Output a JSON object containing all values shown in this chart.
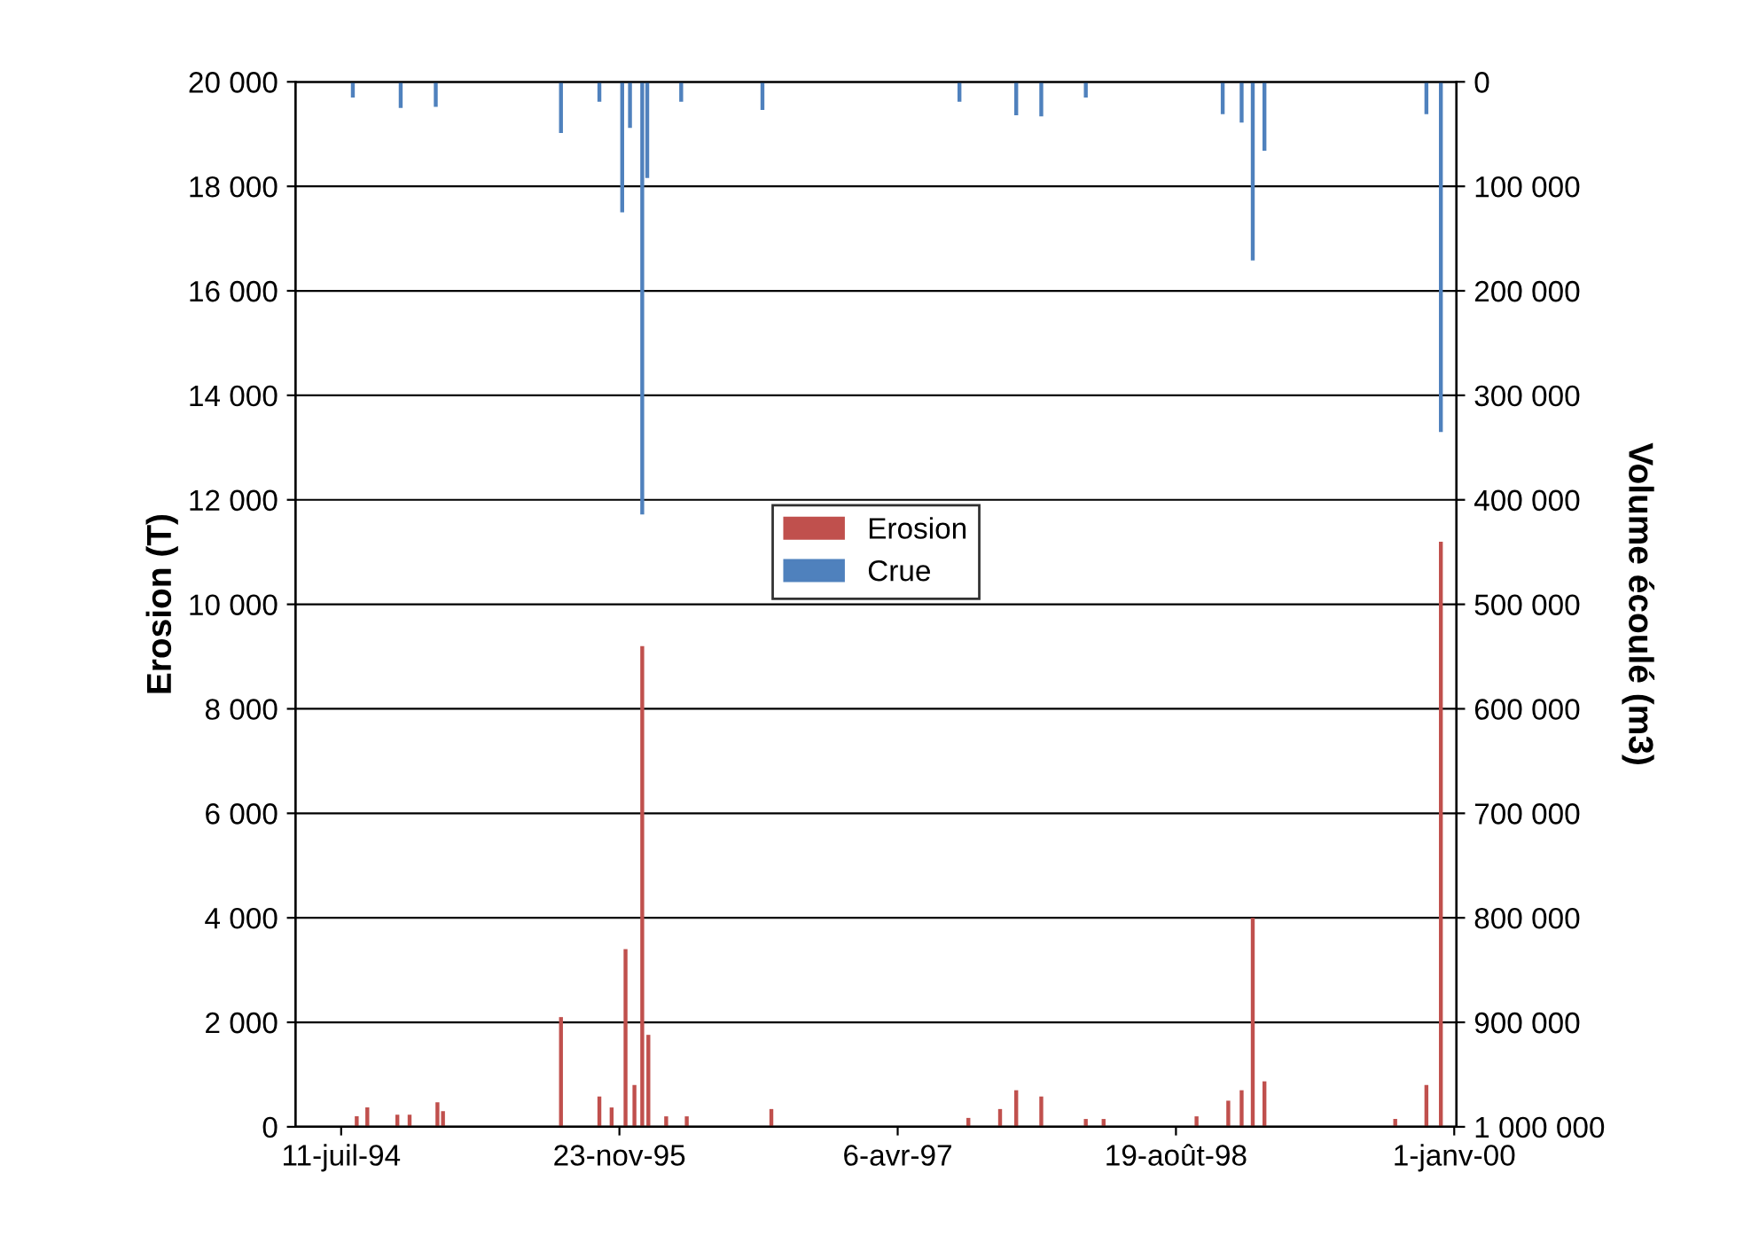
{
  "chart_data": {
    "type": "bar",
    "ylabel": "Erosion (T)",
    "y2label": "Volume écoulé (m3)",
    "xlim": [
      "1994-04-20",
      "2000-01-05"
    ],
    "xticks": [
      {
        "value": "1994-07-11",
        "label": "11-juil-94"
      },
      {
        "value": "1995-11-23",
        "label": "23-nov-95"
      },
      {
        "value": "1997-04-06",
        "label": "6-avr-97"
      },
      {
        "value": "1998-08-19",
        "label": "19-août-98"
      },
      {
        "value": "2000-01-01",
        "label": "1-janv-00"
      }
    ],
    "ylim": [
      0,
      20000
    ],
    "yticks": [
      0,
      {
        "value": 2000,
        "label": "2 000"
      },
      {
        "value": 4000,
        "label": "4 000"
      },
      {
        "value": 6000,
        "label": "6 000"
      },
      {
        "value": 8000,
        "label": "8 000"
      },
      {
        "value": 10000,
        "label": "10 000"
      },
      {
        "value": 12000,
        "label": "12 000"
      },
      {
        "value": 14000,
        "label": "14 000"
      },
      {
        "value": 16000,
        "label": "16 000"
      },
      {
        "value": 18000,
        "label": "18 000"
      },
      {
        "value": 20000,
        "label": "20 000"
      }
    ],
    "y2lim": [
      1000000,
      0
    ],
    "y2ticks": [
      0,
      {
        "value": 100000,
        "label": "100 000"
      },
      {
        "value": 200000,
        "label": "200 000"
      },
      {
        "value": 300000,
        "label": "300 000"
      },
      {
        "value": 400000,
        "label": "400 000"
      },
      {
        "value": 500000,
        "label": "500 000"
      },
      {
        "value": 600000,
        "label": "600 000"
      },
      {
        "value": 700000,
        "label": "700 000"
      },
      {
        "value": 800000,
        "label": "800 000"
      },
      {
        "value": 900000,
        "label": "900 000"
      },
      {
        "value": 1000000,
        "label": "1 000 000"
      }
    ],
    "grid": "y",
    "legend": "center",
    "series": [
      {
        "name": "Erosion",
        "color": "#c0504d",
        "x": [
          "1994-08-08",
          "1994-08-27",
          "1994-10-20",
          "1994-11-11",
          "1994-12-31",
          "1995-01-10",
          "1995-08-10",
          "1995-10-18",
          "1995-11-09",
          "1995-12-04",
          "1995-12-20",
          "1996-01-03",
          "1996-01-14",
          "1996-02-15",
          "1996-03-23",
          "1996-08-22",
          "1997-08-11",
          "1997-10-07",
          "1997-11-05",
          "1997-12-20",
          "1998-03-10",
          "1998-04-11",
          "1998-09-25",
          "1998-11-21",
          "1998-12-15",
          "1999-01-04",
          "1999-01-25",
          "1999-09-17",
          "1999-11-12",
          "1999-12-08"
        ],
        "values": [
          200,
          370,
          230,
          230,
          470,
          300,
          2100,
          580,
          370,
          3400,
          800,
          9200,
          1760,
          200,
          200,
          340,
          170,
          340,
          700,
          580,
          150,
          150,
          200,
          500,
          700,
          4000,
          870,
          150,
          800,
          11200
        ]
      },
      {
        "name": "Crue",
        "color": "#4f81bd",
        "axis": "y2",
        "x": [
          "1994-08-01",
          "1994-10-26",
          "1994-12-28",
          "1995-08-10",
          "1995-10-18",
          "1995-11-28",
          "1995-12-12",
          "1996-01-03",
          "1996-01-12",
          "1996-03-13",
          "1996-08-06",
          "1997-07-26",
          "1997-11-05",
          "1997-12-20",
          "1998-03-10",
          "1998-11-11",
          "1998-12-15",
          "1999-01-04",
          "1999-01-25",
          "1999-11-12",
          "1999-12-08"
        ],
        "values": [
          15000,
          25000,
          24000,
          49000,
          19000,
          125000,
          44000,
          414000,
          92000,
          19000,
          27000,
          19000,
          32000,
          33000,
          15000,
          31000,
          39000,
          171000,
          66000,
          31000,
          335000
        ]
      }
    ]
  }
}
